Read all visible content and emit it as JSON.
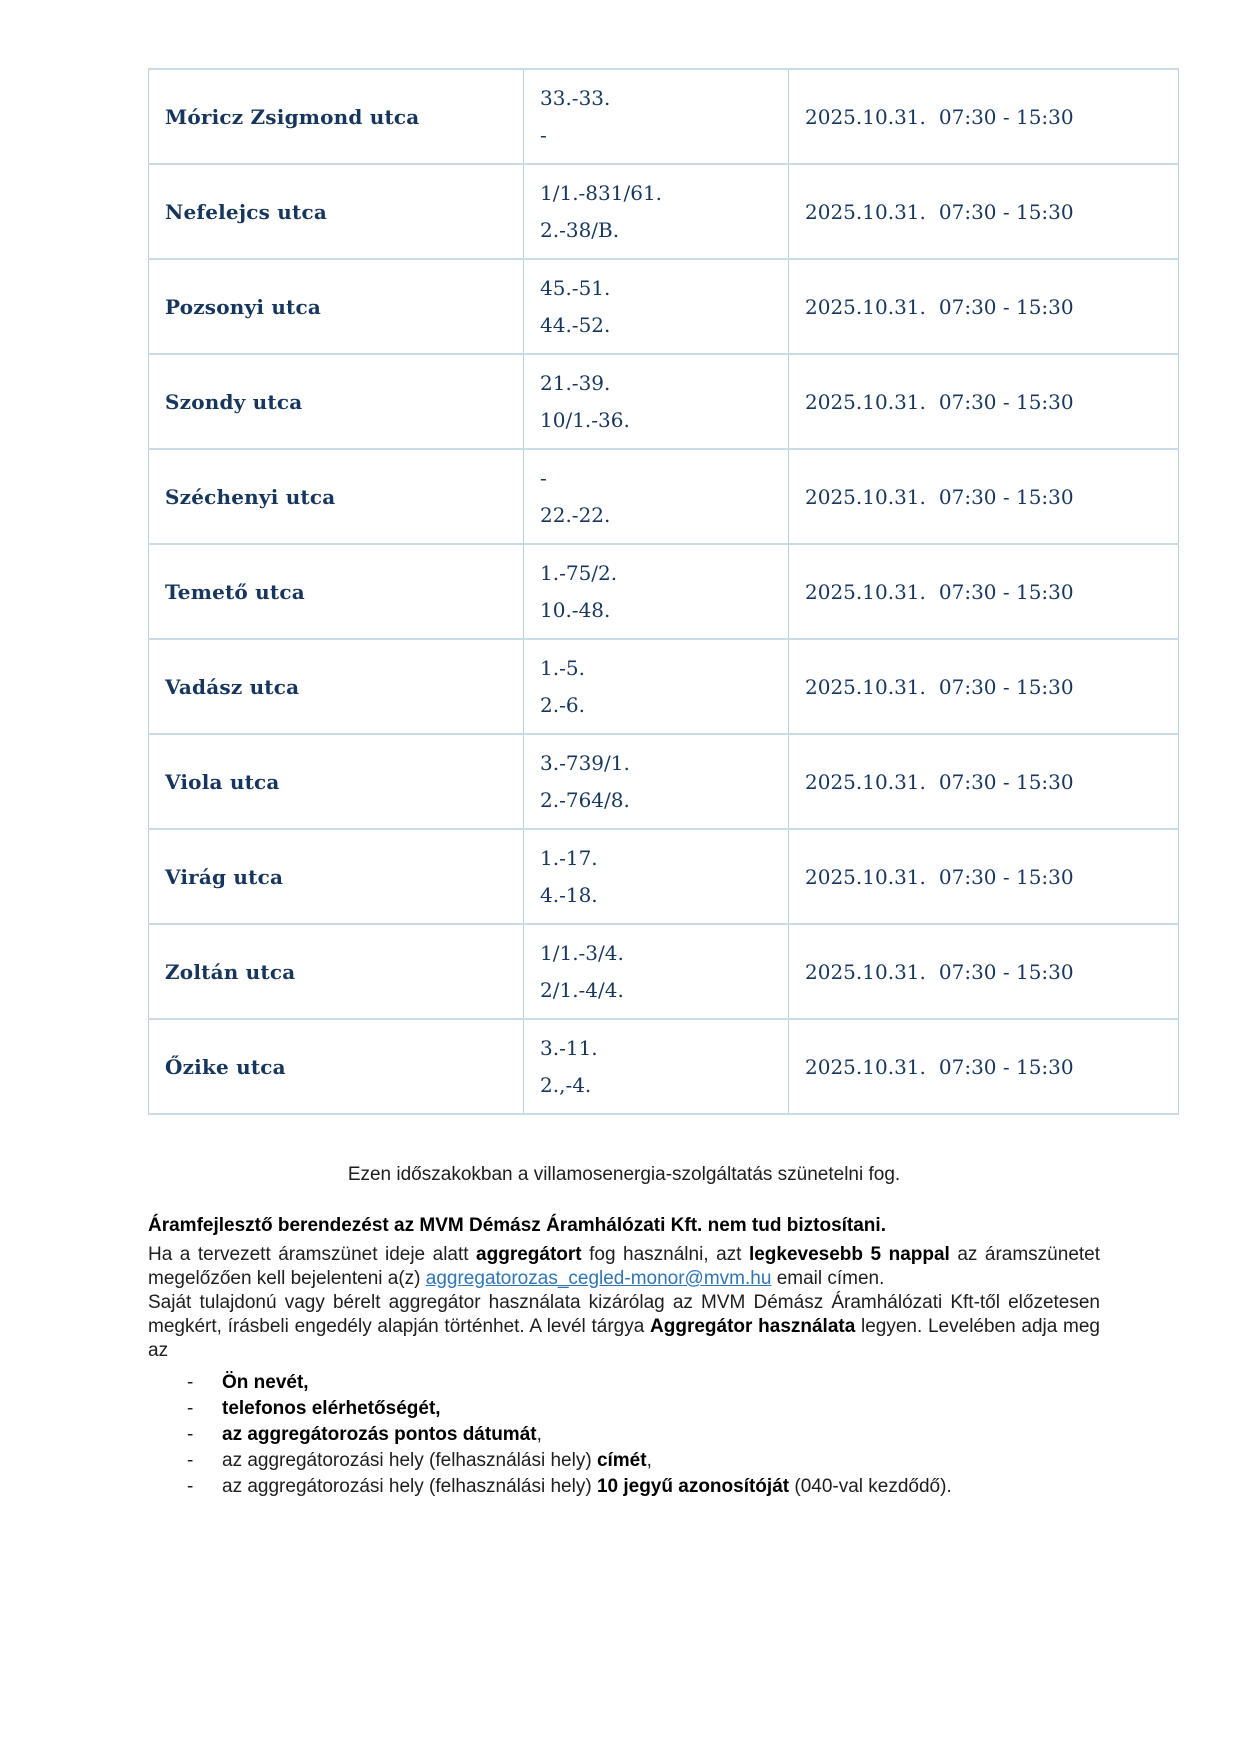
{
  "table": {
    "rows": [
      {
        "street": "Móricz Zsigmond utca",
        "house_numbers": [
          "33.-33.",
          "-"
        ],
        "date": "2025.10.31.",
        "time": "07:30 - 15:30"
      },
      {
        "street": "Nefelejcs utca",
        "house_numbers": [
          "1/1.-831/61.",
          "2.-38/B."
        ],
        "date": "2025.10.31.",
        "time": "07:30 - 15:30"
      },
      {
        "street": "Pozsonyi utca",
        "house_numbers": [
          "45.-51.",
          "44.-52."
        ],
        "date": "2025.10.31.",
        "time": "07:30 - 15:30"
      },
      {
        "street": "Szondy utca",
        "house_numbers": [
          "21.-39.",
          "10/1.-36."
        ],
        "date": "2025.10.31.",
        "time": "07:30 - 15:30"
      },
      {
        "street": "Széchenyi utca",
        "house_numbers": [
          "-",
          "22.-22."
        ],
        "date": "2025.10.31.",
        "time": "07:30 - 15:30"
      },
      {
        "street": "Temető utca",
        "house_numbers": [
          "1.-75/2.",
          "10.-48."
        ],
        "date": "2025.10.31.",
        "time": "07:30 - 15:30"
      },
      {
        "street": "Vadász utca",
        "house_numbers": [
          "1.-5.",
          "2.-6."
        ],
        "date": "2025.10.31.",
        "time": "07:30 - 15:30"
      },
      {
        "street": "Viola utca",
        "house_numbers": [
          "3.-739/1.",
          "2.-764/8."
        ],
        "date": "2025.10.31.",
        "time": "07:30 - 15:30"
      },
      {
        "street": "Virág utca",
        "house_numbers": [
          "1.-17.",
          "4.-18."
        ],
        "date": "2025.10.31.",
        "time": "07:30 - 15:30"
      },
      {
        "street": "Zoltán utca",
        "house_numbers": [
          "1/1.-3/4.",
          "2/1.-4/4."
        ],
        "date": "2025.10.31.",
        "time": "07:30 - 15:30"
      },
      {
        "street": "Őzike utca",
        "house_numbers": [
          "3.-11.",
          "2.,-4."
        ],
        "date": "2025.10.31.",
        "time": "07:30 - 15:30"
      }
    ]
  },
  "notice": {
    "interruption_line": "Ezen időszakokban a villamosenergia-szolgáltatás szünetelni fog.",
    "generator_heading": "Áramfejlesztő berendezést az MVM Démász Áramhálózati Kft. nem tud biztosítani.",
    "paragraph1": [
      {
        "text": "Ha a tervezett áramszünet ideje alatt "
      },
      {
        "text": "aggregátort",
        "bold": true
      },
      {
        "text": " fog használni, azt "
      },
      {
        "text": "legkevesebb 5 nappal",
        "bold": true
      },
      {
        "text": " az áramszünetet megelőzően kell bejelenteni a(z) "
      },
      {
        "text": "aggregatorozas_cegled-monor@mvm.hu",
        "link": true
      },
      {
        "text": " email címen."
      }
    ],
    "paragraph2": [
      {
        "text": "Saját tulajdonú vagy bérelt aggregátor használata kizárólag az MVM Démász Áramhálózati Kft-től előzetesen megkért, írásbeli engedély alapján történhet. A levél tárgya "
      },
      {
        "text": "Aggregátor használata",
        "bold": true
      },
      {
        "text": " legyen. Levelében adja meg az"
      }
    ],
    "list_marker": "-",
    "list_items": [
      [
        {
          "text": "Ön nevét,",
          "bold": true
        }
      ],
      [
        {
          "text": "telefonos elérhetőségét,",
          "bold": true
        }
      ],
      [
        {
          "text": "az aggregátorozás pontos dátumát",
          "bold": true
        },
        {
          "text": ","
        }
      ],
      [
        {
          "text": "az aggregátorozási hely (felhasználási hely) "
        },
        {
          "text": "címét",
          "bold": true
        },
        {
          "text": ","
        }
      ],
      [
        {
          "text": "az aggregátorozási hely (felhasználási hely) "
        },
        {
          "text": "10 jegyű azonosítóját",
          "bold": true
        },
        {
          "text": " (040-val kezdődő)."
        }
      ]
    ]
  },
  "colors": {
    "table_text": "#17365d",
    "table_border": "#b9cfde",
    "body_text": "#1d1d1d",
    "link": "#2e75b6"
  }
}
